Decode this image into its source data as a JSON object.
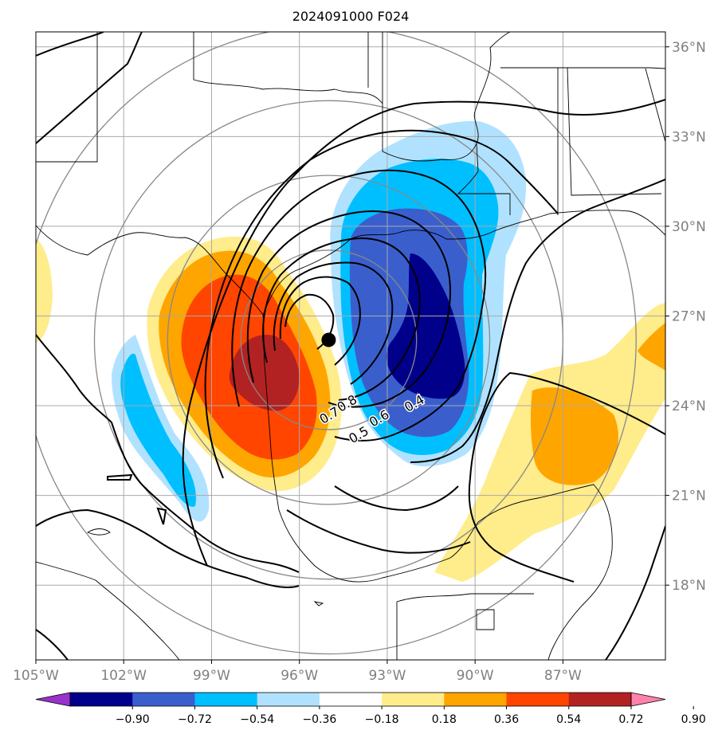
{
  "chart_data": {
    "type": "heatmap",
    "title": "2024091000 F024",
    "map": {
      "projection": "PlateCarree",
      "extent": {
        "lon": [
          -105,
          -83.5
        ],
        "lat": [
          15.5,
          36.5
        ]
      },
      "lon_ticks": [
        {
          "value": -105,
          "label": "105°W"
        },
        {
          "value": -102,
          "label": "102°W"
        },
        {
          "value": -99,
          "label": "99°W"
        },
        {
          "value": -96,
          "label": "96°W"
        },
        {
          "value": -93,
          "label": "93°W"
        },
        {
          "value": -90,
          "label": "90°W"
        },
        {
          "value": -87,
          "label": "87°W"
        }
      ],
      "lat_ticks": [
        {
          "value": 36,
          "label": "36°N"
        },
        {
          "value": 33,
          "label": "33°N"
        },
        {
          "value": 30,
          "label": "30°N"
        },
        {
          "value": 27,
          "label": "27°N"
        },
        {
          "value": 24,
          "label": "24°N"
        },
        {
          "value": 21,
          "label": "21°N"
        },
        {
          "value": 18,
          "label": "18°N"
        }
      ],
      "gridlines": true,
      "center_marker": {
        "lon": -95.0,
        "lat": 26.2
      },
      "range_rings_deg": [
        3,
        5.5,
        8,
        10.5
      ]
    },
    "colorbar": {
      "orientation": "horizontal",
      "extend": "both",
      "levels": [
        -0.9,
        -0.72,
        -0.54,
        -0.36,
        -0.18,
        0.18,
        0.36,
        0.54,
        0.72,
        0.9
      ],
      "tick_labels": [
        "−0.90",
        "−0.72",
        "−0.54",
        "−0.36",
        "−0.18",
        "0.18",
        "0.36",
        "0.54",
        "0.72",
        "0.90"
      ],
      "colors": [
        "#9932CC",
        "#00008B",
        "#3A5FCD",
        "#00BFFF",
        "#B0E2FF",
        "#FFFFFF",
        "#FFEC8B",
        "#FFA500",
        "#FF4500",
        "#B22222",
        "#FF82AB"
      ]
    },
    "shaded_features": [
      {
        "name": "positive lobe west",
        "value_class": "0.72 to 0.90",
        "center": {
          "lon": -97.6,
          "lat": 25.3
        }
      },
      {
        "name": "negative lobe east",
        "value_class": "-0.90 to -0.72",
        "center": {
          "lon": -92.3,
          "lat": 26.5
        }
      },
      {
        "name": "positive band southeast",
        "value_class": "0.36 to 0.54",
        "center": {
          "lon": -88.8,
          "lat": 23.3
        }
      },
      {
        "name": "negative band southwest",
        "value_class": "-0.36 to -0.18",
        "center": {
          "lon": -101.5,
          "lat": 23.5
        }
      }
    ],
    "contour_labels": [
      {
        "text": "0.8",
        "lon": -94.3,
        "lat": 23.95
      },
      {
        "text": "0.7",
        "lon": -94.9,
        "lat": 23.55
      },
      {
        "text": "0.6",
        "lon": -93.2,
        "lat": 23.45
      },
      {
        "text": "0.5",
        "lon": -93.9,
        "lat": 22.9
      },
      {
        "text": "0.4",
        "lon": -92.0,
        "lat": 23.95
      }
    ]
  }
}
